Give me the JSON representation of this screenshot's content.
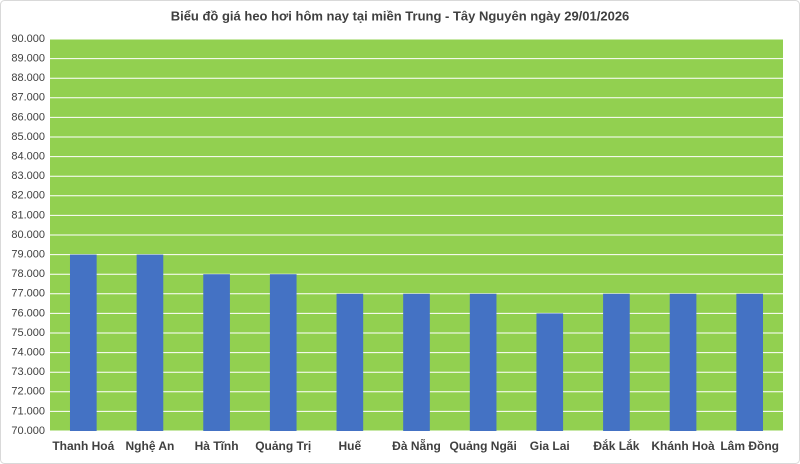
{
  "chart_data": {
    "type": "bar",
    "title": "Biểu đồ giá heo hơi hôm nay tại miền Trung - Tây Nguyên ngày 29/01/2026",
    "categories": [
      "Thanh Hoá",
      "Nghệ An",
      "Hà Tĩnh",
      "Quảng Trị",
      "Huế",
      "Đà Nẵng",
      "Quảng Ngãi",
      "Gia Lai",
      "Đắk Lắk",
      "Khánh Hoà",
      "Lâm Đồng"
    ],
    "values": [
      79000,
      79000,
      78000,
      78000,
      77000,
      77000,
      77000,
      76000,
      77000,
      77000,
      77000
    ],
    "color": "#4472c4",
    "background_color": "#92d050",
    "grid": true,
    "grid_color": "#ffffff",
    "ylim": [
      70000,
      90000
    ],
    "yticks": [
      {
        "value": 70000,
        "label": "70.000"
      },
      {
        "value": 71000,
        "label": "71.000"
      },
      {
        "value": 72000,
        "label": "72.000"
      },
      {
        "value": 73000,
        "label": "73.000"
      },
      {
        "value": 74000,
        "label": "74.000"
      },
      {
        "value": 75000,
        "label": "75.000"
      },
      {
        "value": 76000,
        "label": "76.000"
      },
      {
        "value": 77000,
        "label": "77.000"
      },
      {
        "value": 78000,
        "label": "78.000"
      },
      {
        "value": 79000,
        "label": "79.000"
      },
      {
        "value": 80000,
        "label": "80.000"
      },
      {
        "value": 81000,
        "label": "81.000"
      },
      {
        "value": 82000,
        "label": "82.000"
      },
      {
        "value": 83000,
        "label": "83.000"
      },
      {
        "value": 84000,
        "label": "84.000"
      },
      {
        "value": 85000,
        "label": "85.000"
      },
      {
        "value": 86000,
        "label": "86.000"
      },
      {
        "value": 87000,
        "label": "87.000"
      },
      {
        "value": 88000,
        "label": "88.000"
      },
      {
        "value": 89000,
        "label": "89.000"
      },
      {
        "value": 90000,
        "label": "90.000"
      }
    ]
  }
}
